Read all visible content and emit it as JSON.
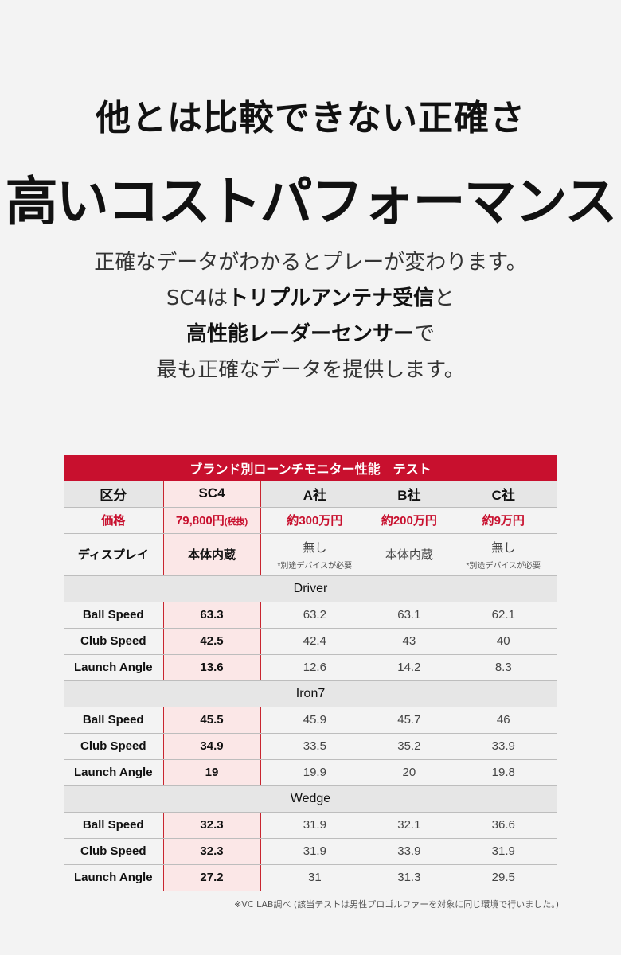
{
  "headline": "他とは比較できない正確さ",
  "headline2": "高いコストパフォーマンス",
  "desc": {
    "l1": "正確なデータがわかるとプレーが変わります。",
    "l2a": "SC4は",
    "l2b": "トリプルアンテナ受信",
    "l2c": "と",
    "l3a": "高性能レーダーセンサー",
    "l3b": "で",
    "l4": "最も正確なデータを提供します。"
  },
  "table": {
    "title": "ブランド別ローンチモニター性能　テスト",
    "headers": [
      "区分",
      "SC4",
      "A社",
      "B社",
      "C社"
    ],
    "price": {
      "label": "価格",
      "sc4": "79,800円",
      "sc4_note": "(税抜)",
      "a": "約300万円",
      "b": "約200万円",
      "c": "約9万円"
    },
    "display": {
      "label": "ディスプレイ",
      "sc4": "本体内蔵",
      "a": "無し",
      "a_note": "*別途デバイスが必要",
      "b": "本体内蔵",
      "c": "無し",
      "c_note": "*別途デバイスが必要"
    },
    "sections": [
      {
        "name": "Driver",
        "rows": [
          [
            "Ball Speed",
            "63.3",
            "63.2",
            "63.1",
            "62.1"
          ],
          [
            "Club Speed",
            "42.5",
            "42.4",
            "43",
            "40"
          ],
          [
            "Launch Angle",
            "13.6",
            "12.6",
            "14.2",
            "8.3"
          ]
        ]
      },
      {
        "name": "Iron7",
        "rows": [
          [
            "Ball Speed",
            "45.5",
            "45.9",
            "45.7",
            "46"
          ],
          [
            "Club Speed",
            "34.9",
            "33.5",
            "35.2",
            "33.9"
          ],
          [
            "Launch Angle",
            "19",
            "19.9",
            "20",
            "19.8"
          ]
        ]
      },
      {
        "name": "Wedge",
        "rows": [
          [
            "Ball Speed",
            "32.3",
            "31.9",
            "32.1",
            "36.6"
          ],
          [
            "Club Speed",
            "32.3",
            "31.9",
            "33.9",
            "31.9"
          ],
          [
            "Launch Angle",
            "27.2",
            "31",
            "31.3",
            "29.5"
          ]
        ]
      }
    ]
  },
  "note": "※VC LAB調べ (該当テストは男性プロゴルファーを対象に同じ環境で行いました。)",
  "colors": {
    "accent": "#c8102e",
    "highlight": "#fbe7e7"
  }
}
